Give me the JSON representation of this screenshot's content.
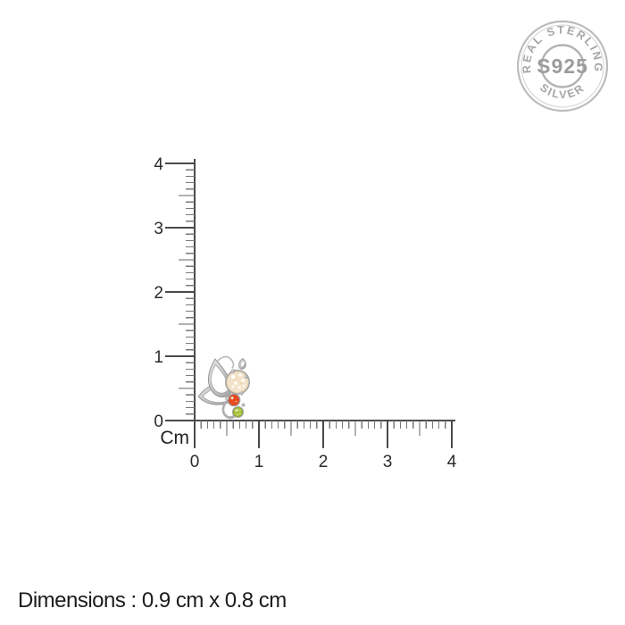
{
  "seal": {
    "arc_top": "REAL STERLING",
    "center": "S925",
    "arc_bottom": "SILVER",
    "color": "#a6a6a6",
    "ring_color": "#bcbcbc"
  },
  "ruler": {
    "unit_label": "Cm",
    "vertical_labels": [
      "4",
      "3",
      "2",
      "1",
      "0"
    ],
    "horizontal_labels": [
      "0",
      "1",
      "2",
      "3",
      "4"
    ]
  },
  "product": {
    "name": "butterfly-stud-earring",
    "metal_color": "#9c9c9c",
    "stones": [
      {
        "name": "opal-stone",
        "color": "#f3e3ca"
      },
      {
        "name": "orange-stone",
        "color": "#e84d22"
      },
      {
        "name": "peridot-stone",
        "color": "#a7c13f"
      }
    ]
  },
  "caption": {
    "text": "Dimensions : 0.9 cm x 0.8 cm"
  }
}
